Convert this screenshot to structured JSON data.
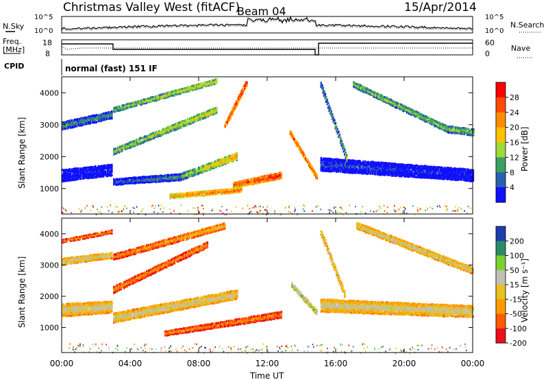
{
  "header": {
    "station": "Christmas Valley West (fitACF)",
    "beam": "Beam 04",
    "date": "15/Apr/2014"
  },
  "panels": {
    "noise": {
      "left_label": "N.Sky",
      "left_ticks": [
        "10^5",
        "10^0"
      ],
      "right_ticks": [
        "10^5",
        "10^0"
      ],
      "right_label": "N.Search"
    },
    "freq": {
      "left_label_top": "Freq.",
      "left_label_bottom": "[MHz]",
      "left_ticks": [
        "18",
        "8"
      ],
      "right_ticks": [
        "60",
        "0"
      ],
      "right_label": "Nave"
    },
    "cpid": {
      "label": "CPID",
      "text": "normal (fast) 151 IF"
    }
  },
  "x_axis": {
    "label": "Time UT",
    "ticks": [
      "00:00",
      "04:00",
      "08:00",
      "12:00",
      "16:00",
      "20:00",
      "00:00"
    ]
  },
  "colorbars": {
    "power": {
      "label": "Power [dB]",
      "ticks": [
        "28",
        "24",
        "20",
        "16",
        "12",
        "8",
        "4"
      ],
      "colors": [
        "#ff0000",
        "#ff4a00",
        "#ff8c00",
        "#ffc000",
        "#a0d838",
        "#3ca060",
        "#2c5fb0",
        "#1010ff"
      ]
    },
    "velocity": {
      "label": "Velocity [m s⁻¹]",
      "ticks": [
        "200",
        "100",
        "50",
        "15",
        "-15",
        "-50",
        "-100",
        "-200"
      ],
      "colors": [
        "#1f3cb0",
        "#2d8a68",
        "#7cd030",
        "#c0c0b8",
        "#e8c020",
        "#ff9a00",
        "#ff5a00",
        "#e8101a"
      ]
    }
  },
  "chart_data": [
    {
      "type": "heatmap",
      "panel": "power",
      "ylabel": "Slant Range [km]",
      "yticks": [
        1000,
        2000,
        3000,
        4000
      ],
      "ylim": [
        200,
        4500
      ],
      "xlim_hours": [
        0,
        24
      ],
      "bands": [
        {
          "t": [
            0.0,
            2.9
          ],
          "r": [
            1450,
            1620
          ],
          "w": [
            380,
            360
          ],
          "level": [
            7,
            7
          ]
        },
        {
          "t": [
            0.0,
            2.9
          ],
          "r": [
            3000,
            3350
          ],
          "w": [
            260,
            240
          ],
          "level": [
            5,
            5
          ]
        },
        {
          "t": [
            3.0,
            7.0
          ],
          "r": [
            1250,
            1400
          ],
          "w": [
            200,
            220
          ],
          "level": [
            6,
            5
          ]
        },
        {
          "t": [
            7.0,
            10.2
          ],
          "r": [
            1420,
            2050
          ],
          "w": [
            220,
            240
          ],
          "level": [
            4,
            2
          ]
        },
        {
          "t": [
            3.0,
            9.0
          ],
          "r": [
            2200,
            3500
          ],
          "w": [
            200,
            200
          ],
          "level": [
            4,
            3
          ]
        },
        {
          "t": [
            3.0,
            9.0
          ],
          "r": [
            3500,
            4400
          ],
          "w": [
            160,
            160
          ],
          "level": [
            4,
            3
          ]
        },
        {
          "t": [
            6.3,
            10.5
          ],
          "r": [
            800,
            1000
          ],
          "w": [
            140,
            160
          ],
          "level": [
            2,
            1
          ]
        },
        {
          "t": [
            10.0,
            12.8
          ],
          "r": [
            1150,
            1450
          ],
          "w": [
            180,
            220
          ],
          "level": [
            1,
            0
          ]
        },
        {
          "t": [
            9.5,
            10.8
          ],
          "r": [
            3000,
            4400
          ],
          "w": [
            180,
            200
          ],
          "level": [
            1,
            0
          ]
        },
        {
          "t": [
            13.3,
            14.9
          ],
          "r": [
            2800,
            1350
          ],
          "w": [
            150,
            160
          ],
          "level": [
            1,
            1
          ]
        },
        {
          "t": [
            15.1,
            24.0
          ],
          "r": [
            1800,
            1450
          ],
          "w": [
            420,
            380
          ],
          "level": [
            6,
            7
          ]
        },
        {
          "t": [
            15.1,
            16.6
          ],
          "r": [
            4300,
            2000
          ],
          "w": [
            180,
            200
          ],
          "level": [
            5,
            4
          ]
        },
        {
          "t": [
            17.0,
            22.5
          ],
          "r": [
            4300,
            2900
          ],
          "w": [
            180,
            200
          ],
          "level": [
            4,
            4
          ]
        },
        {
          "t": [
            22.5,
            24.0
          ],
          "r": [
            2900,
            2800
          ],
          "w": [
            220,
            220
          ],
          "level": [
            4,
            4
          ]
        }
      ]
    },
    {
      "type": "heatmap",
      "panel": "velocity",
      "ylabel": "Slant Range [km]",
      "yticks": [
        1000,
        2000,
        3000,
        4000
      ],
      "ylim": [
        200,
        4500
      ],
      "xlim_hours": [
        0,
        24
      ],
      "bands": [
        {
          "t": [
            0.0,
            2.9
          ],
          "r": [
            1600,
            1700
          ],
          "w": [
            420,
            380
          ],
          "level": [
            3,
            3
          ]
        },
        {
          "t": [
            0.0,
            2.9
          ],
          "r": [
            3150,
            3350
          ],
          "w": [
            220,
            200
          ],
          "level": [
            3,
            3
          ]
        },
        {
          "t": [
            0.0,
            2.9
          ],
          "r": [
            3800,
            4100
          ],
          "w": [
            120,
            120
          ],
          "level": [
            5,
            5
          ]
        },
        {
          "t": [
            3.0,
            10.2
          ],
          "r": [
            1350,
            2100
          ],
          "w": [
            320,
            300
          ],
          "level": [
            3,
            3
          ]
        },
        {
          "t": [
            3.0,
            8.5
          ],
          "r": [
            2250,
            3700
          ],
          "w": [
            220,
            200
          ],
          "level": [
            5,
            5
          ]
        },
        {
          "t": [
            3.0,
            9.5
          ],
          "r": [
            3300,
            4300
          ],
          "w": [
            200,
            200
          ],
          "level": [
            5,
            4
          ]
        },
        {
          "t": [
            6.0,
            12.8
          ],
          "r": [
            850,
            1450
          ],
          "w": [
            160,
            220
          ],
          "level": [
            5,
            5
          ]
        },
        {
          "t": [
            13.4,
            14.9
          ],
          "r": [
            2400,
            1500
          ],
          "w": [
            160,
            180
          ],
          "level": [
            2,
            2
          ]
        },
        {
          "t": [
            15.1,
            24.0
          ],
          "r": [
            1750,
            1550
          ],
          "w": [
            420,
            380
          ],
          "level": [
            3,
            3
          ]
        },
        {
          "t": [
            15.1,
            16.5
          ],
          "r": [
            4100,
            2100
          ],
          "w": [
            200,
            200
          ],
          "level": [
            3,
            3
          ]
        },
        {
          "t": [
            17.2,
            24.0
          ],
          "r": [
            4300,
            2850
          ],
          "w": [
            220,
            220
          ],
          "level": [
            3,
            3
          ]
        }
      ]
    }
  ]
}
